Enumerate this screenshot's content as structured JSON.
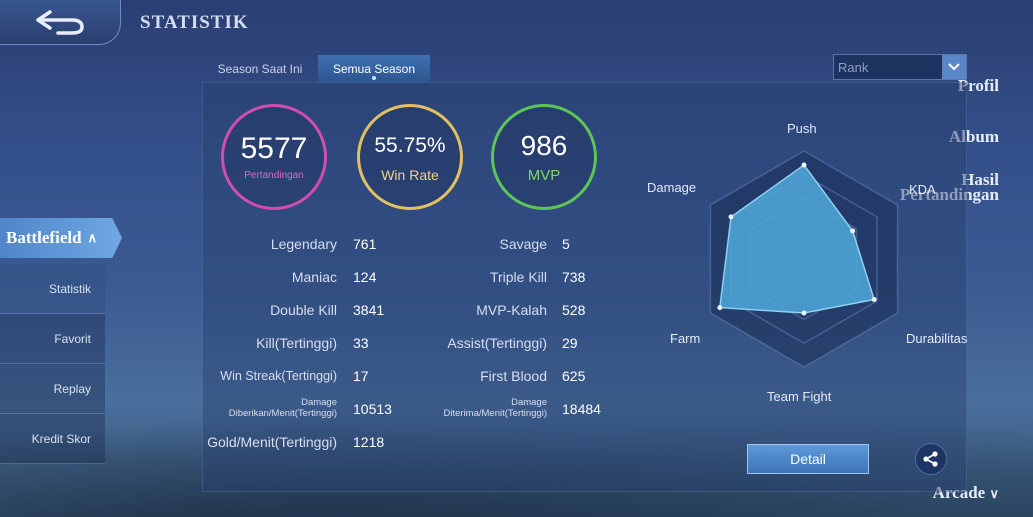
{
  "header": {
    "title": "STATISTIK"
  },
  "sidebar": {
    "items": [
      {
        "label": "Profil"
      },
      {
        "label": "Album"
      },
      {
        "label": "Hasil Pertandingan"
      },
      {
        "label": "Battlefield"
      },
      {
        "label": "Arcade"
      }
    ],
    "sub_items": [
      {
        "label": "Statistik"
      },
      {
        "label": "Favorit"
      },
      {
        "label": "Replay"
      },
      {
        "label": "Kredit Skor"
      }
    ]
  },
  "tabs": [
    {
      "label": "Season Saat Ini"
    },
    {
      "label": "Semua Season"
    }
  ],
  "rank_select": {
    "value": "Rank"
  },
  "summary": [
    {
      "value": "5577",
      "label": "Pertandingan",
      "color": "#d24db0"
    },
    {
      "value": "55.75%",
      "label": "Win Rate",
      "color": "#e3c060"
    },
    {
      "value": "986",
      "label": "MVP",
      "color": "#5dc558"
    }
  ],
  "stats_left": [
    {
      "label": "Legendary",
      "value": "761"
    },
    {
      "label": "Maniac",
      "value": "124"
    },
    {
      "label": "Double Kill",
      "value": "3841"
    },
    {
      "label": "Kill(Tertinggi)",
      "value": "33"
    },
    {
      "label": "Win Streak(Tertinggi)",
      "value": "17"
    },
    {
      "label": "Damage Diberikan/Menit(Tertinggi)",
      "value": "10513"
    },
    {
      "label": "Gold/Menit(Tertinggi)",
      "value": "1218"
    }
  ],
  "stats_right": [
    {
      "label": "Savage",
      "value": "5"
    },
    {
      "label": "Triple Kill",
      "value": "738"
    },
    {
      "label": "MVP-Kalah",
      "value": "528"
    },
    {
      "label": "Assist(Tertinggi)",
      "value": "29"
    },
    {
      "label": "First Blood",
      "value": "625"
    },
    {
      "label": "Damage Diterima/Menit(Tertinggi)",
      "value": "18484"
    }
  ],
  "radar": {
    "labels": [
      "Push",
      "KDA",
      "Durabilitas",
      "Team Fight",
      "Farm",
      "Damage"
    ],
    "values": [
      0.87,
      0.52,
      0.75,
      0.5,
      0.9,
      0.78
    ],
    "fill_color": "#4fa9dc"
  },
  "detail_button": {
    "label": "Detail"
  }
}
